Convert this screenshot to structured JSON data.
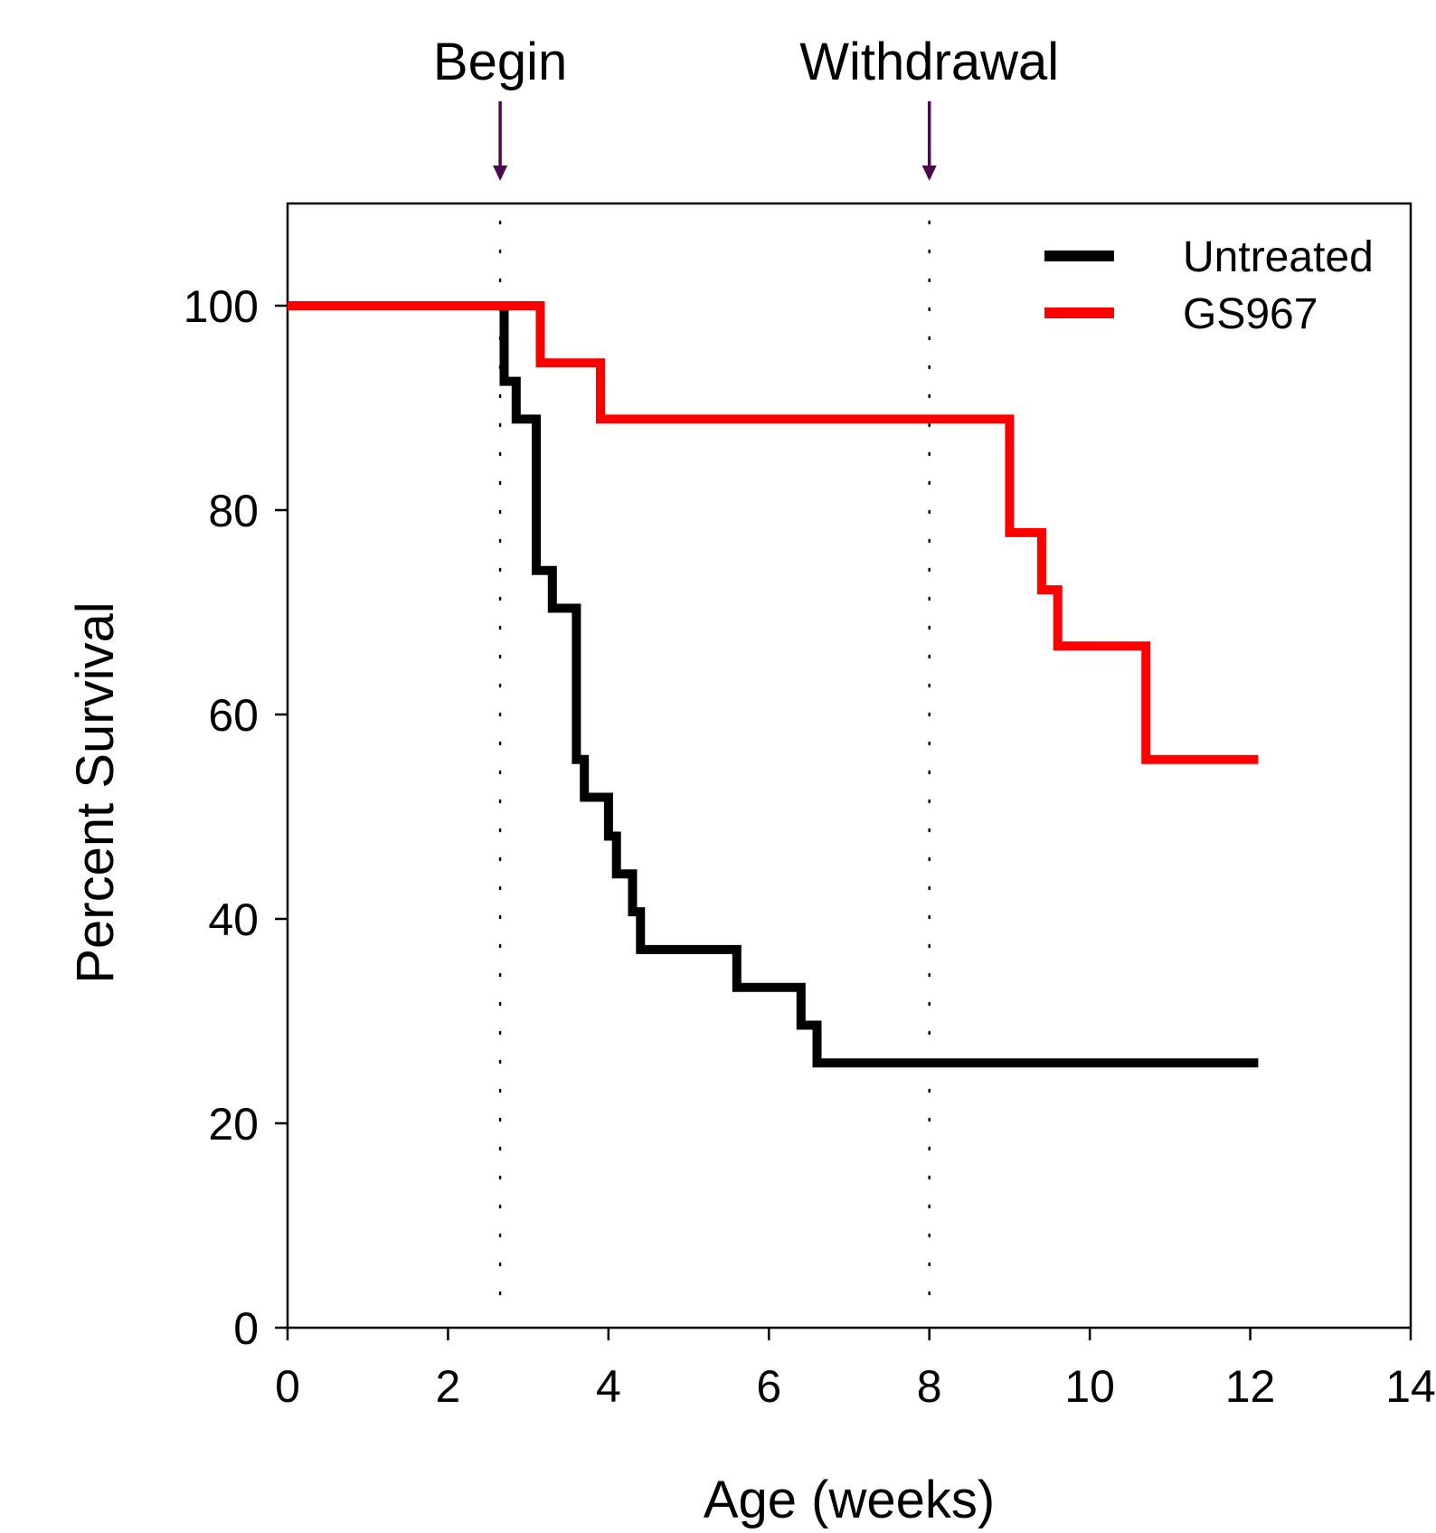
{
  "chart_data": {
    "type": "line",
    "subtype": "step",
    "title": "",
    "xlabel": "Age (weeks)",
    "ylabel": "Percent Survival",
    "xlim": [
      0,
      14
    ],
    "ylim": [
      0,
      110
    ],
    "xticks": [
      0,
      2,
      4,
      6,
      8,
      10,
      12,
      14
    ],
    "yticks": [
      0,
      20,
      40,
      60,
      80,
      100
    ],
    "grid": false,
    "legend_position": "top-right",
    "annotations": [
      {
        "label": "Begin",
        "x": 2.65,
        "style": "dotted vertical line with arrow",
        "color": "#4b0a4f"
      },
      {
        "label": "Withdrawal",
        "x": 8.0,
        "style": "dotted vertical line with arrow",
        "color": "#4b0a4f"
      }
    ],
    "series": [
      {
        "name": "Untreated",
        "color": "#000000",
        "points": [
          [
            0,
            100
          ],
          [
            2.7,
            100
          ],
          [
            2.7,
            92.6
          ],
          [
            2.85,
            92.6
          ],
          [
            2.85,
            88.9
          ],
          [
            3.1,
            88.9
          ],
          [
            3.1,
            74.1
          ],
          [
            3.3,
            74.1
          ],
          [
            3.3,
            70.4
          ],
          [
            3.6,
            70.4
          ],
          [
            3.6,
            55.6
          ],
          [
            3.7,
            55.6
          ],
          [
            3.7,
            51.9
          ],
          [
            4.0,
            51.9
          ],
          [
            4.0,
            48.1
          ],
          [
            4.1,
            48.1
          ],
          [
            4.1,
            44.4
          ],
          [
            4.3,
            44.4
          ],
          [
            4.3,
            40.7
          ],
          [
            4.4,
            40.7
          ],
          [
            4.4,
            37.0
          ],
          [
            5.6,
            37.0
          ],
          [
            5.6,
            33.3
          ],
          [
            6.4,
            33.3
          ],
          [
            6.4,
            29.6
          ],
          [
            6.6,
            29.6
          ],
          [
            6.6,
            25.9
          ],
          [
            12.1,
            25.9
          ]
        ]
      },
      {
        "name": "GS967",
        "color": "#ff0000",
        "points": [
          [
            0,
            100
          ],
          [
            3.15,
            100
          ],
          [
            3.15,
            94.4
          ],
          [
            3.9,
            94.4
          ],
          [
            3.9,
            88.9
          ],
          [
            9.0,
            88.9
          ],
          [
            9.0,
            77.8
          ],
          [
            9.4,
            77.8
          ],
          [
            9.4,
            72.2
          ],
          [
            9.6,
            72.2
          ],
          [
            9.6,
            66.7
          ],
          [
            10.7,
            66.7
          ],
          [
            10.7,
            55.6
          ],
          [
            12.1,
            55.6
          ]
        ]
      }
    ]
  }
}
